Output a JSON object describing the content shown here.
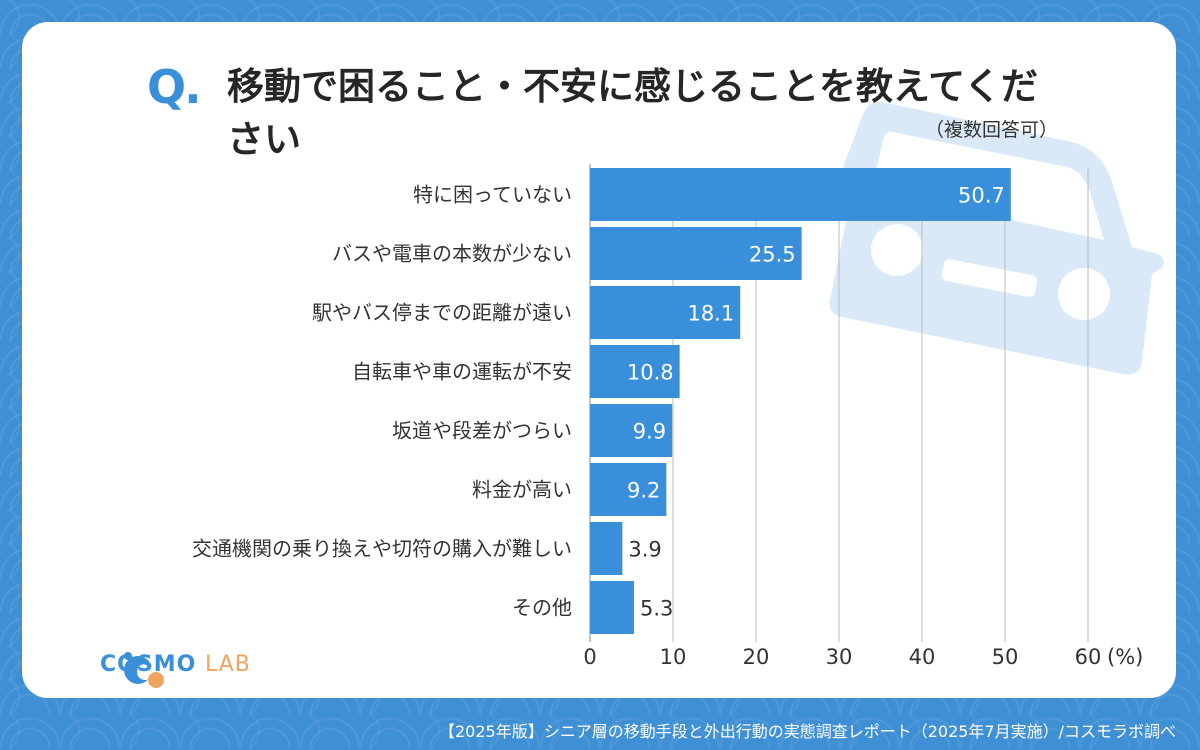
{
  "question": {
    "marker": "Q",
    "title": "移動で困ること・不安に感じることを教えてください",
    "note": "（複数回答可）"
  },
  "logo": {
    "part1": "COSMO",
    "part2": "LAB"
  },
  "footer": "【2025年版】シニア層の移動手段と外出行動の実態調査レポート（2025年7月実施）/コスモラボ調べ",
  "colors": {
    "bar": "#3a8fda",
    "label_inside": "#ffffff",
    "label_outside": "#333333",
    "grid": "#bbbbbb"
  },
  "chart_data": {
    "type": "bar",
    "orientation": "horizontal",
    "categories": [
      "特に困っていない",
      "バスや電車の本数が少ない",
      "駅やバス停までの距離が遠い",
      "自転車や車の運転が不安",
      "坂道や段差がつらい",
      "料金が高い",
      "交通機関の乗り換えや切符の購入が難しい",
      "その他"
    ],
    "values": [
      50.7,
      25.5,
      18.1,
      10.8,
      9.9,
      9.2,
      3.9,
      5.3
    ],
    "value_labels": [
      "50.7",
      "25.5",
      "18.1",
      "10.8",
      "9.9",
      "9.2",
      "3.9",
      "5.3"
    ],
    "xlim": [
      0,
      60
    ],
    "xticks": [
      "0",
      "10",
      "20",
      "30",
      "40",
      "50",
      "60"
    ],
    "xunit": "(%)",
    "grid": true
  }
}
